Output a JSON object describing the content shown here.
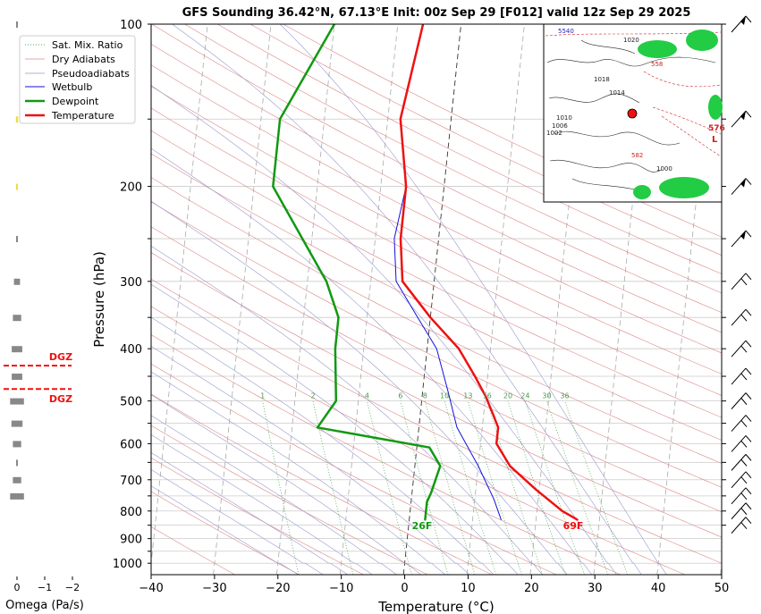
{
  "chart_data": {
    "type": "line",
    "title": "GFS Sounding 36.42°N, 67.13°E Init: 00z Sep 29 [F012] valid 12z Sep 29 2025",
    "xlabel": "Temperature (°C)",
    "ylabel": "Pressure (hPa)",
    "xlim": [
      -40,
      50
    ],
    "ylim": [
      1050,
      100
    ],
    "y_scale": "log",
    "x_ticks": [
      "−40",
      "−30",
      "−20",
      "−10",
      "0",
      "10",
      "20",
      "30",
      "40",
      "50"
    ],
    "y_ticks": [
      "100",
      "200",
      "300",
      "400",
      "500",
      "600",
      "700",
      "800",
      "900",
      "1000"
    ],
    "legend": {
      "placement": "top-left",
      "entries": [
        "Sat. Mix. Ratio",
        "Dry Adiabats",
        "Pseudoadiabats",
        "Wetbulb",
        "Dewpoint",
        "Temperature"
      ]
    },
    "colors": {
      "temperature": "#ee1111",
      "dewpoint": "#119911",
      "wetbulb": "#1111dd",
      "dry_adiabats": "#dd8888",
      "pseudoadiabats": "#9999cc",
      "mixing_ratio": "#55aa55",
      "isotherm": "#999999"
    },
    "series": [
      {
        "name": "Temperature",
        "points": [
          [
            26.5,
            830
          ],
          [
            24,
            800
          ],
          [
            19.5,
            730
          ],
          [
            15,
            660
          ],
          [
            12.5,
            600
          ],
          [
            12.5,
            560
          ],
          [
            11.5,
            530
          ],
          [
            10,
            490
          ],
          [
            8,
            450
          ],
          [
            5,
            400
          ],
          [
            0,
            350
          ],
          [
            -5,
            300
          ],
          [
            -6,
            250
          ],
          [
            -6,
            200
          ],
          [
            -8,
            150
          ],
          [
            -6,
            100
          ]
        ]
      },
      {
        "name": "Dewpoint",
        "points": [
          [
            2.5,
            830
          ],
          [
            2.5,
            770
          ],
          [
            3,
            740
          ],
          [
            4,
            660
          ],
          [
            2,
            610
          ],
          [
            -16,
            560
          ],
          [
            -13.5,
            500
          ],
          [
            -14.5,
            400
          ],
          [
            -14.5,
            350
          ],
          [
            -17,
            300
          ],
          [
            -21.5,
            250
          ],
          [
            -27,
            200
          ],
          [
            -27,
            150
          ],
          [
            -20,
            100
          ]
        ]
      },
      {
        "name": "Wetbulb",
        "points": [
          [
            14.5,
            830
          ],
          [
            13,
            760
          ],
          [
            10,
            660
          ],
          [
            6,
            560
          ],
          [
            4,
            480
          ],
          [
            1.5,
            400
          ],
          [
            -2,
            350
          ],
          [
            -6,
            300
          ],
          [
            -7,
            250
          ],
          [
            -6,
            200
          ]
        ]
      }
    ],
    "mixing_ratio_labels": [
      "1",
      "2",
      "4",
      "6",
      "8",
      "10",
      "13",
      "16",
      "20",
      "24",
      "30",
      "36"
    ],
    "surface_labels": {
      "dewpoint": "26F",
      "temperature": "69F"
    },
    "omega": {
      "xlabel": "Omega (Pa/s)",
      "ticks": [
        "0",
        "−1",
        "−2"
      ],
      "dgz_label_top": "DGZ",
      "dgz_label_bottom": "DGZ",
      "dgz_pressures": [
        430,
        475
      ],
      "bars": [
        {
          "p": 100,
          "w": 0.05,
          "c": "#888888"
        },
        {
          "p": 150,
          "w": 0.08,
          "c": "#eedd44"
        },
        {
          "p": 200,
          "w": 0.06,
          "c": "#eedd44"
        },
        {
          "p": 250,
          "w": 0.03,
          "c": "#888888"
        },
        {
          "p": 300,
          "w": 0.22,
          "c": "#888888"
        },
        {
          "p": 350,
          "w": 0.3,
          "c": "#888888"
        },
        {
          "p": 400,
          "w": 0.38,
          "c": "#888888"
        },
        {
          "p": 450,
          "w": 0.38,
          "c": "#888888"
        },
        {
          "p": 500,
          "w": 0.5,
          "c": "#888888"
        },
        {
          "p": 550,
          "w": 0.4,
          "c": "#888888"
        },
        {
          "p": 600,
          "w": 0.3,
          "c": "#888888"
        },
        {
          "p": 650,
          "w": 0.05,
          "c": "#888888"
        },
        {
          "p": 700,
          "w": 0.3,
          "c": "#888888"
        },
        {
          "p": 750,
          "w": 0.5,
          "c": "#888888"
        }
      ]
    },
    "wind_barbs": {
      "side": "right",
      "pressures": [
        100,
        150,
        200,
        250,
        300,
        350,
        400,
        450,
        500,
        550,
        600,
        650,
        700,
        750,
        800,
        850
      ]
    },
    "inset_map": {
      "location": "top-right",
      "contour_labels": [
        "5540",
        "1020",
        "1018",
        "1014",
        "1010",
        "1006",
        "1002",
        "1000",
        "582",
        "576",
        "558",
        "L"
      ]
    }
  }
}
